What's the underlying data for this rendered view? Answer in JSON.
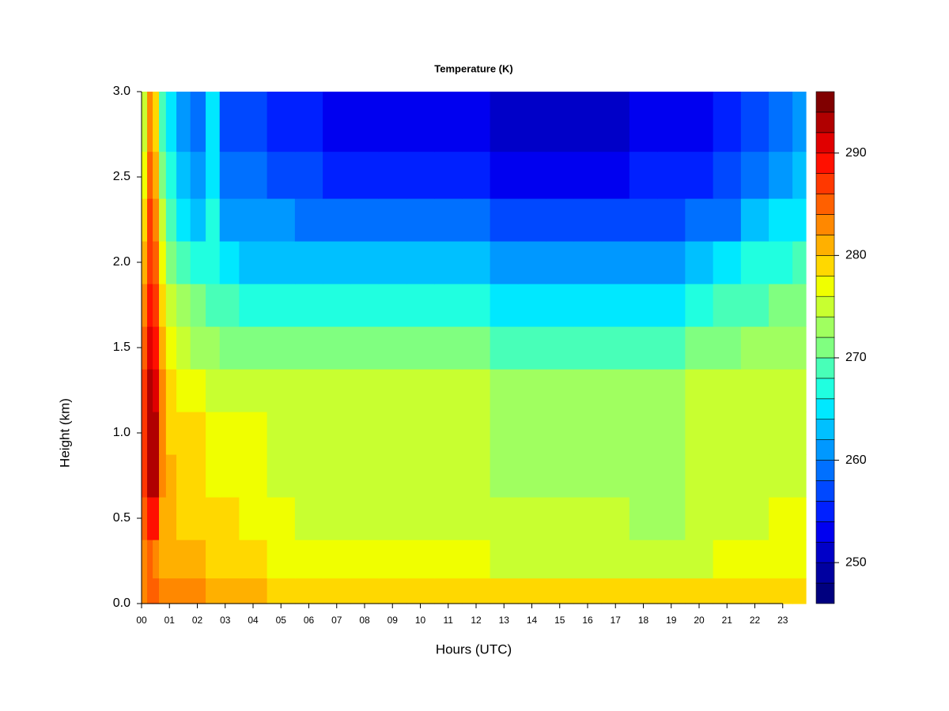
{
  "chart_data": {
    "type": "heatmap",
    "title": "Temperature (K)",
    "x_label": "Hours (UTC)",
    "y_label": "Height (km)",
    "x": [
      0.1,
      0.3,
      0.5,
      0.75,
      1,
      1.5,
      2,
      2.6,
      3,
      4,
      5,
      6,
      7,
      8,
      9,
      10,
      11,
      12,
      13,
      14,
      15,
      16,
      17,
      18,
      19,
      20,
      21,
      22,
      23,
      23.7
    ],
    "y": [
      0.05,
      0.25,
      0.5,
      0.75,
      1.0,
      1.25,
      1.5,
      1.75,
      2.0,
      2.25,
      2.5,
      2.8
    ],
    "z": [
      [
        283,
        284,
        284,
        283,
        283,
        283,
        282,
        281,
        281,
        280,
        279,
        279,
        278,
        278,
        278,
        278,
        278,
        278,
        278,
        278,
        278,
        278,
        278,
        278,
        278,
        278,
        278,
        279,
        279,
        279
      ],
      [
        283,
        285,
        283,
        281,
        281,
        280,
        280,
        279,
        279,
        278,
        277,
        276,
        276,
        276,
        276,
        276,
        276,
        276,
        275,
        275,
        275,
        275,
        275,
        275,
        275,
        275,
        276,
        276,
        277,
        277
      ],
      [
        284,
        289,
        288,
        281,
        281,
        279,
        279,
        278,
        278,
        277,
        276,
        275,
        275,
        275,
        275,
        275,
        275,
        275,
        274,
        274,
        274,
        274,
        274,
        273,
        273,
        274,
        275,
        275,
        276,
        276
      ],
      [
        286,
        293,
        292,
        282,
        280,
        279,
        278,
        277,
        277,
        276,
        275,
        275,
        274,
        274,
        274,
        274,
        274,
        274,
        272,
        272,
        272,
        272,
        272,
        272,
        272,
        274,
        275,
        275,
        275,
        275
      ],
      [
        287,
        293,
        292,
        283,
        279,
        278,
        278,
        277,
        276,
        276,
        275,
        275,
        274,
        274,
        274,
        274,
        274,
        274,
        272,
        272,
        272,
        272,
        272,
        273,
        273,
        274,
        274,
        274,
        275,
        275
      ],
      [
        286,
        292,
        291,
        282,
        278,
        277,
        276,
        275,
        275,
        274,
        274,
        274,
        274,
        274,
        274,
        274,
        274,
        274,
        273,
        273,
        273,
        273,
        273,
        273,
        273,
        274,
        274,
        274,
        275,
        275
      ],
      [
        285,
        290,
        289,
        280,
        276,
        275,
        273,
        272,
        271,
        270,
        270,
        270,
        270,
        270,
        270,
        270,
        270,
        270,
        268,
        268,
        268,
        268,
        268,
        269,
        269,
        270,
        271,
        272,
        273,
        273
      ],
      [
        283,
        288,
        287,
        278,
        274,
        272,
        270,
        269,
        268,
        267,
        267,
        267,
        266,
        266,
        266,
        266,
        266,
        266,
        264,
        264,
        264,
        264,
        264,
        265,
        265,
        266,
        268,
        269,
        270,
        271
      ],
      [
        281,
        287,
        285,
        276,
        271,
        268,
        266,
        267,
        264,
        263,
        263,
        263,
        262,
        262,
        262,
        262,
        262,
        262,
        260,
        260,
        260,
        260,
        260,
        261,
        261,
        262,
        264,
        266,
        267,
        268
      ],
      [
        279,
        286,
        283,
        274,
        268,
        265,
        263,
        266,
        261,
        260,
        260,
        259,
        258,
        258,
        258,
        258,
        258,
        258,
        256,
        256,
        256,
        256,
        256,
        257,
        257,
        258,
        259,
        262,
        264,
        265
      ],
      [
        277,
        284,
        281,
        271,
        266,
        262,
        261,
        265,
        259,
        258,
        257,
        256,
        255,
        255,
        255,
        255,
        255,
        255,
        253,
        253,
        253,
        253,
        253,
        254,
        254,
        255,
        256,
        259,
        261,
        262
      ],
      [
        274,
        282,
        279,
        268,
        264,
        261,
        259,
        264,
        257,
        256,
        255,
        254,
        253,
        253,
        253,
        253,
        253,
        253,
        251,
        251,
        251,
        251,
        251,
        252,
        252,
        253,
        254,
        257,
        259,
        260
      ]
    ],
    "xlim": [
      0,
      23.83
    ],
    "ylim": [
      0,
      3
    ],
    "xticks": [
      {
        "value": 0,
        "label": "00"
      },
      {
        "value": 1,
        "label": "01"
      },
      {
        "value": 2,
        "label": "02"
      },
      {
        "value": 3,
        "label": "03"
      },
      {
        "value": 4,
        "label": "04"
      },
      {
        "value": 5,
        "label": "05"
      },
      {
        "value": 6,
        "label": "06"
      },
      {
        "value": 7,
        "label": "07"
      },
      {
        "value": 8,
        "label": "08"
      },
      {
        "value": 9,
        "label": "09"
      },
      {
        "value": 10,
        "label": "10"
      },
      {
        "value": 11,
        "label": "11"
      },
      {
        "value": 12,
        "label": "12"
      },
      {
        "value": 13,
        "label": "13"
      },
      {
        "value": 14,
        "label": "14"
      },
      {
        "value": 15,
        "label": "15"
      },
      {
        "value": 16,
        "label": "16"
      },
      {
        "value": 17,
        "label": "17"
      },
      {
        "value": 18,
        "label": "18"
      },
      {
        "value": 19,
        "label": "19"
      },
      {
        "value": 20,
        "label": "20"
      },
      {
        "value": 21,
        "label": "21"
      },
      {
        "value": 22,
        "label": "22"
      },
      {
        "value": 23,
        "label": "23"
      }
    ],
    "yticks": [
      {
        "value": 0,
        "label": "0.0"
      },
      {
        "value": 0.5,
        "label": "0.5"
      },
      {
        "value": 1,
        "label": "1.0"
      },
      {
        "value": 1.5,
        "label": "1.5"
      },
      {
        "value": 2,
        "label": "2.0"
      },
      {
        "value": 2.5,
        "label": "2.5"
      },
      {
        "value": 3,
        "label": "3.0"
      }
    ],
    "levels": [
      246,
      248,
      250,
      252,
      254,
      256,
      258,
      260,
      262,
      264,
      266,
      268,
      270,
      272,
      274,
      276,
      278,
      280,
      282,
      284,
      286,
      288,
      290,
      292,
      294,
      296
    ],
    "colors": [
      "#00007F",
      "#0000A0",
      "#0000C8",
      "#0000F0",
      "#0020FF",
      "#0048FF",
      "#0070FF",
      "#0098FF",
      "#00C0FF",
      "#00E8FF",
      "#20FFE0",
      "#48FFB8",
      "#80FF80",
      "#A0FF60",
      "#C8FF30",
      "#F0FF00",
      "#FFD800",
      "#FFB000",
      "#FF8800",
      "#FF6000",
      "#FF3800",
      "#FF1000",
      "#E00000",
      "#B00000",
      "#800000"
    ],
    "colorbar_ticks": [
      250,
      260,
      270,
      280,
      290
    ]
  }
}
